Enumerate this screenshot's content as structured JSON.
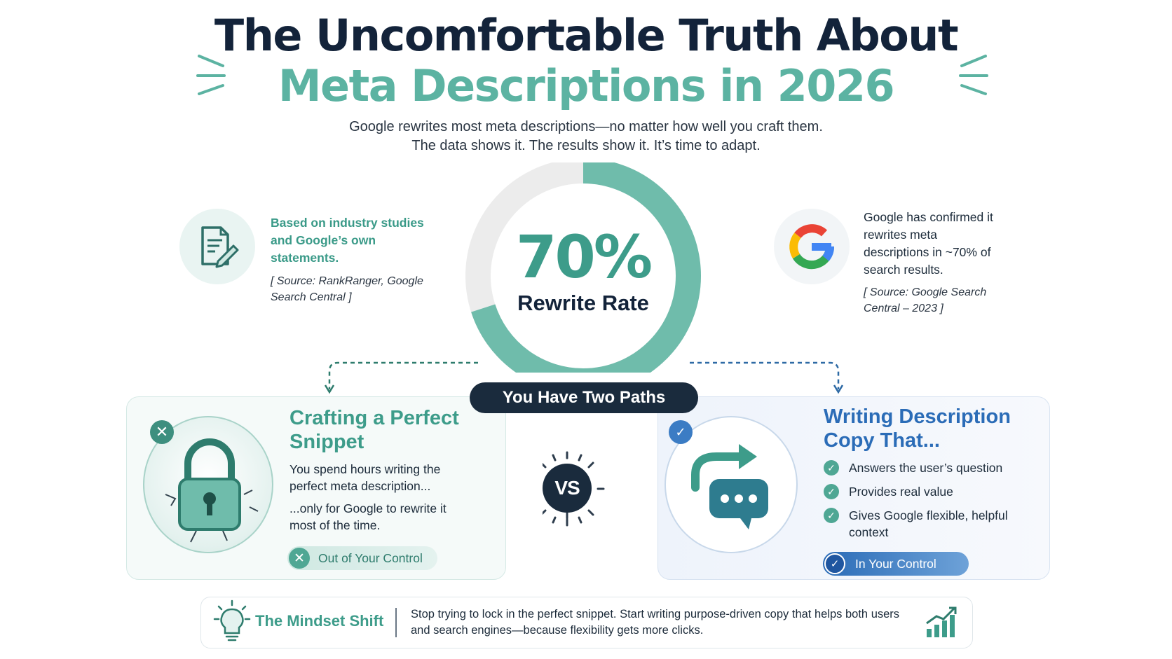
{
  "header": {
    "title_line1": "The Uncomfortable Truth About",
    "title_line2": "Meta Descriptions in 2026",
    "subtitle_line1": "Google rewrites most meta descriptions—no matter how well you craft them.",
    "subtitle_line2": "The data shows it. The results show it. It’s time to adapt."
  },
  "stat": {
    "value": "70%",
    "label": "Rewrite Rate",
    "fraction": 0.7,
    "left_text": "Based on industry studies and Google’s own statements.",
    "left_source": "[ Source: RankRanger, Google Search Central ]",
    "right_text": "Google has confirmed it rewrites meta descriptions in ~70% of search results.",
    "right_source": "[ Source: Google Search Central – 2023 ]"
  },
  "paths_label": "You Have Two Paths",
  "vs_label": "VS",
  "left_card": {
    "title": "Crafting a Perfect Snippet",
    "para1": "You spend hours writing the perfect meta description...",
    "para2": "...only for Google to rewrite it most of the time.",
    "pill": "Out of Your Control"
  },
  "right_card": {
    "title": "Writing Description Copy That...",
    "items": [
      "Answers the user’s question",
      "Provides real value",
      "Gives Google flexible, helpful context"
    ],
    "pill": "In Your Control"
  },
  "mindset": {
    "label": "The Mindset Shift",
    "text": "Stop trying to lock in the perfect snippet. Start writing purpose-driven copy that helps both users and search engines—because flexibility gets more clicks."
  },
  "colors": {
    "teal": "#5cb3a2",
    "navy": "#13233a",
    "blue": "#2b6cb7",
    "gray_track": "#ececec"
  },
  "icons": [
    "document-pen-icon",
    "google-logo-icon",
    "padlock-icon",
    "redirect-chat-icon",
    "lightbulb-icon",
    "growth-chart-icon",
    "close-icon",
    "check-icon"
  ]
}
